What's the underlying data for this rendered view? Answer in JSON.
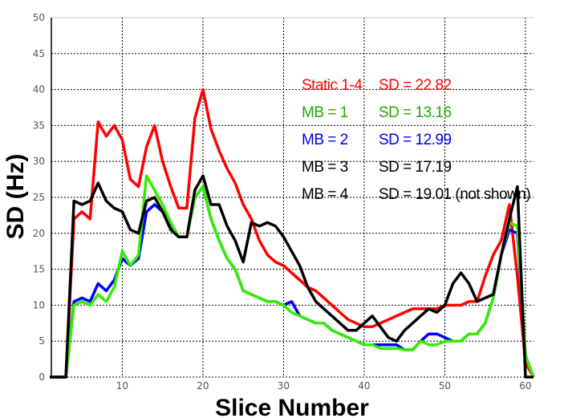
{
  "chart_data": {
    "type": "line",
    "title": "",
    "xlabel": "Slice Number",
    "ylabel": "SD (Hz)",
    "xlim": [
      1.2,
      61
    ],
    "ylim": [
      0,
      50
    ],
    "xticks": [
      10,
      20,
      30,
      40,
      50,
      60
    ],
    "yticks": [
      0,
      5,
      10,
      15,
      20,
      25,
      30,
      35,
      40,
      45,
      50
    ],
    "grid": true,
    "x": [
      1,
      2,
      3,
      4,
      5,
      6,
      7,
      8,
      9,
      10,
      11,
      12,
      13,
      14,
      15,
      16,
      17,
      18,
      19,
      20,
      21,
      22,
      23,
      24,
      25,
      26,
      27,
      28,
      29,
      30,
      31,
      32,
      33,
      34,
      35,
      36,
      37,
      38,
      39,
      40,
      41,
      42,
      43,
      44,
      45,
      46,
      47,
      48,
      49,
      50,
      51,
      52,
      53,
      54,
      55,
      56,
      57,
      58,
      59,
      60,
      61
    ],
    "series": [
      {
        "key": "static",
        "color": "#ff0000",
        "values": [
          0,
          0,
          0,
          22,
          23,
          22,
          35.5,
          33.5,
          35,
          33,
          27.5,
          26.5,
          32,
          35,
          30,
          26.5,
          23.5,
          23.5,
          36,
          40,
          34.5,
          31.5,
          29,
          27,
          24,
          22,
          19,
          17,
          16,
          15.5,
          14.5,
          13.5,
          12.5,
          12,
          11,
          10,
          9,
          8,
          7.5,
          7,
          7,
          7.5,
          8,
          8.5,
          9,
          9.5,
          9.5,
          9.5,
          9.5,
          10,
          10,
          10,
          10.5,
          10.5,
          14,
          17,
          19,
          24,
          14,
          2,
          0
        ]
      },
      {
        "key": "mb2",
        "color": "#0000ff",
        "values": [
          0,
          0,
          0,
          10.5,
          11,
          10.5,
          13,
          12,
          13.5,
          16.5,
          15.5,
          16.5,
          23,
          24,
          23,
          21,
          19.5,
          19.5,
          25,
          26.5,
          22,
          19,
          16.5,
          15,
          12,
          11.5,
          11,
          10.5,
          10.5,
          10,
          10.5,
          8.5,
          8,
          7.5,
          7.5,
          6.5,
          6,
          5.5,
          5,
          4.5,
          4.5,
          4.5,
          4.5,
          4.5,
          3.8,
          3.8,
          5,
          6,
          6,
          5.5,
          5,
          5,
          6,
          6,
          7.5,
          11,
          17,
          20.5,
          20,
          3,
          0
        ]
      },
      {
        "key": "mb1",
        "color": "#33ee00",
        "values": [
          0,
          0,
          0,
          10,
          10.5,
          10,
          11.5,
          10.5,
          12.5,
          17.5,
          15.5,
          17,
          28,
          26,
          24,
          21.5,
          19.5,
          19.5,
          25,
          26.5,
          22,
          19,
          16.5,
          15,
          12,
          11.5,
          11,
          10.5,
          10.5,
          10,
          9,
          8.5,
          8,
          7.5,
          7.5,
          6.5,
          6,
          5.5,
          5,
          4.5,
          4.5,
          4,
          4,
          4,
          3.8,
          3.8,
          5,
          4.5,
          4.5,
          5,
          5,
          5,
          6,
          6,
          7.5,
          11,
          17,
          21.5,
          21,
          3,
          0
        ]
      },
      {
        "key": "mb3",
        "color": "#000000",
        "values": [
          0,
          0,
          0,
          24.5,
          24,
          24.5,
          27,
          24.5,
          23.5,
          23,
          20.5,
          20,
          24.5,
          25,
          23,
          20.5,
          19.5,
          19.5,
          26,
          28,
          24,
          24,
          21,
          19,
          16,
          21.5,
          21,
          21.5,
          21,
          19.5,
          17.5,
          15.5,
          12.5,
          10.5,
          9.5,
          8.5,
          7.5,
          6.5,
          6.5,
          7.5,
          8.5,
          7,
          5.5,
          5,
          6.5,
          7.5,
          8.5,
          9.5,
          9,
          10,
          13,
          14.5,
          13,
          10.5,
          11,
          11.5,
          17,
          22,
          26.5,
          0,
          0
        ]
      }
    ],
    "annotations": [
      {
        "label": "Static 1-4",
        "sd": "SD = 22.82",
        "color": "#ff0000"
      },
      {
        "label": "MB = 1",
        "sd": "SD = 13.16",
        "color": "#22aa00"
      },
      {
        "label": "MB = 2",
        "sd": "SD = 12.99",
        "color": "#0000ee"
      },
      {
        "label": "MB = 3",
        "sd": "SD = 17.19",
        "color": "#000000"
      },
      {
        "label": "MB = 4",
        "sd": "SD = 19.01 (not shown)",
        "color": "#000000"
      }
    ]
  }
}
